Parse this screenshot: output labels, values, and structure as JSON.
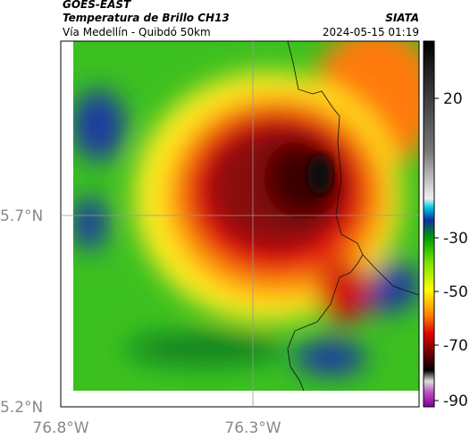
{
  "header": {
    "satellite": "GOES-EAST",
    "product": "Temperatura de Brillo CH13",
    "agency": "SIATA",
    "location": "Vía Medellín - Quibdó 50km",
    "datetime": "2024-05-15 01:19"
  },
  "map": {
    "lat_labels": [
      "5.7°N",
      "5.2°N"
    ],
    "lon_labels": [
      "76.8°W",
      "76.3°W"
    ]
  },
  "colorbar": {
    "ticks": [
      20,
      -30,
      -50,
      -70,
      -90
    ]
  }
}
